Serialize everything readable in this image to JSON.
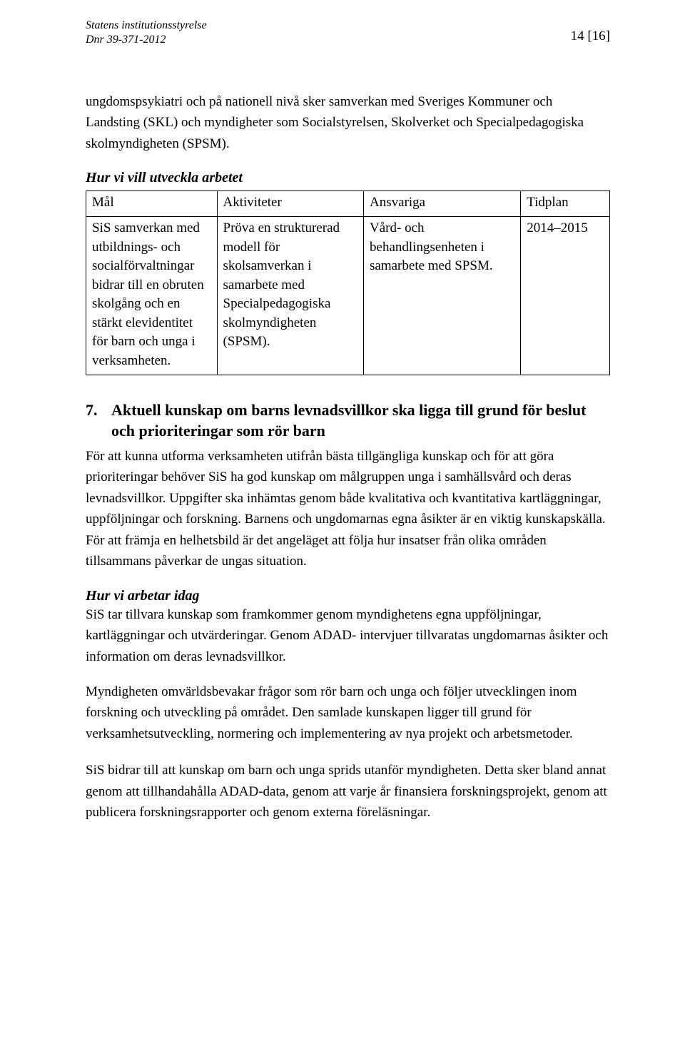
{
  "header": {
    "org": "Statens institutionsstyrelse",
    "dnr": "Dnr 39-371-2012",
    "page_label": "14 [16]"
  },
  "intro": "ungdomspsykiatri och på nationell nivå sker samverkan med Sveriges Kommuner och Landsting (SKL) och myndigheter som Socialstyrelsen, Skolverket och Specialpedagogiska skolmyndigheten (SPSM).",
  "subheading_develop": "Hur vi vill utveckla arbetet",
  "table_headers": {
    "mal": "Mål",
    "akt": "Aktiviteter",
    "ans": "Ansvariga",
    "tid": "Tidplan"
  },
  "table_row": {
    "mal": "SiS samverkan med utbildnings- och socialförvaltningar bidrar till en obruten skolgång och en stärkt elevidentitet för barn och unga i verksamheten.",
    "akt": "Pröva en strukturerad modell för skolsamverkan i samarbete med Specialpedagogiska skolmyndigheten (SPSM).",
    "ans": "Vård- och behandlingsenheten i samarbete med SPSM.",
    "tid": "2014–2015"
  },
  "section7": {
    "number": "7.",
    "title": "Aktuell kunskap om barns levnadsvillkor ska ligga till grund för beslut och prioriteringar som rör barn",
    "para": "För att kunna utforma verksamheten utifrån bästa tillgängliga kunskap och för att göra prioriteringar behöver SiS ha god kunskap om målgruppen unga i samhällsvård och deras levnadsvillkor. Uppgifter ska inhämtas genom både kvalitativa och kvantitativa kartläggningar, uppföljningar och forskning. Barnens och ungdomarnas egna åsikter är en viktig kunskapskälla. För att främja en helhetsbild är det angeläget att följa hur insatser från olika områden tillsammans påverkar de ungas situation."
  },
  "subheading_today": "Hur vi arbetar idag",
  "today_paras": {
    "p1": "SiS tar tillvara kunskap som framkommer genom myndighetens egna uppföljningar, kartläggningar och utvärderingar. Genom ADAD- intervjuer tillvaratas ungdomarnas åsikter och information om deras levnadsvillkor.",
    "p2": "Myndigheten omvärldsbevakar frågor som rör barn och unga och följer utvecklingen inom forskning och utveckling på området. Den samlade kunskapen ligger till grund för verksamhetsutveckling, normering och implementering av nya projekt och arbetsmetoder.",
    "p3": "SiS bidrar till att kunskap om barn och unga sprids utanför myndigheten. Detta sker bland annat genom att tillhandahålla ADAD-data, genom att varje år finansiera forskningsprojekt, genom att publicera forskningsrapporter och genom externa föreläsningar."
  }
}
